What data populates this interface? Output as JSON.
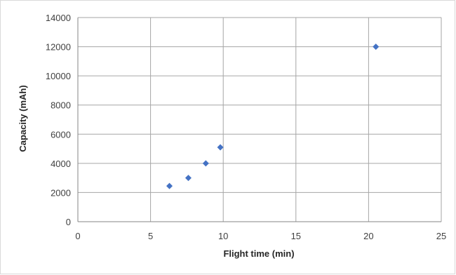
{
  "chart_data": {
    "type": "scatter",
    "title": "",
    "xlabel": "Flight time (min)",
    "ylabel": "Capacity (mAh)",
    "xlim": [
      0,
      25
    ],
    "ylim": [
      0,
      14000
    ],
    "x_ticks": [
      0,
      5,
      10,
      15,
      20,
      25
    ],
    "y_ticks": [
      0,
      2000,
      4000,
      6000,
      8000,
      10000,
      12000,
      14000
    ],
    "grid": true,
    "legend": "none",
    "marker": "diamond",
    "series": [
      {
        "color": "#4472c4",
        "points": [
          {
            "x": 6.3,
            "y": 2450
          },
          {
            "x": 7.6,
            "y": 3000
          },
          {
            "x": 8.8,
            "y": 4000
          },
          {
            "x": 9.8,
            "y": 5100
          },
          {
            "x": 20.5,
            "y": 12000
          }
        ]
      }
    ]
  }
}
